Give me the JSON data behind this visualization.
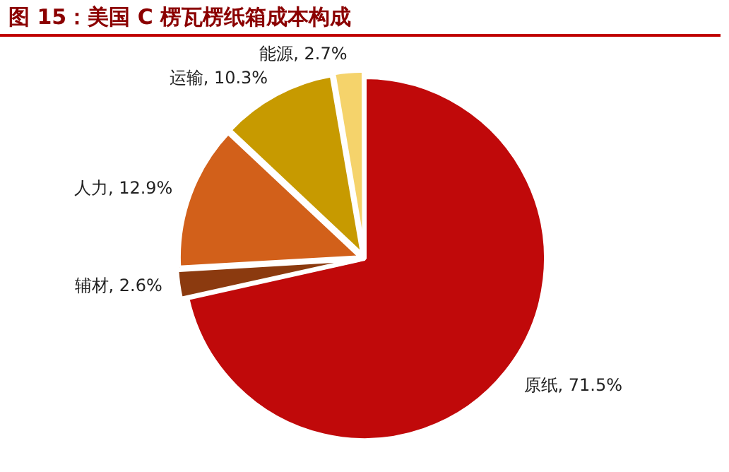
{
  "chart_data": {
    "type": "pie",
    "title": "图 15：美国 C 楞瓦楞纸箱成本构成",
    "categories": [
      "原纸",
      "辅材",
      "人力",
      "运输",
      "能源"
    ],
    "values": [
      71.5,
      2.6,
      12.9,
      10.3,
      2.7
    ],
    "value_labels": [
      "71.5%",
      "2.6%",
      "12.9%",
      "10.3%",
      "2.7%"
    ],
    "colors": [
      "#c0090a",
      "#8b3a0f",
      "#d2601a",
      "#c79a00",
      "#f5d36b"
    ],
    "legend": false
  }
}
